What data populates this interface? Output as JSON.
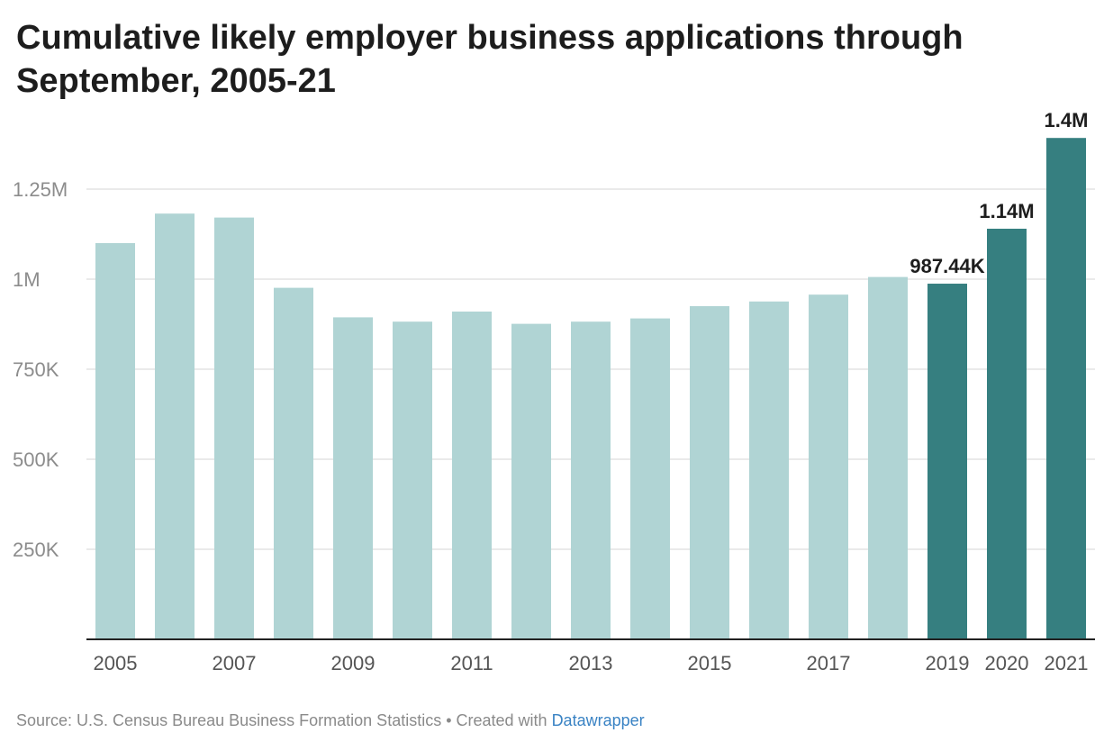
{
  "chart_data": {
    "type": "bar",
    "title": "Cumulative likely employer business applications through September, 2005-21",
    "categories": [
      "2005",
      "2006",
      "2007",
      "2008",
      "2009",
      "2010",
      "2011",
      "2012",
      "2013",
      "2014",
      "2015",
      "2016",
      "2017",
      "2018",
      "2019",
      "2020",
      "2021"
    ],
    "x_tick_labels": [
      "2005",
      "",
      "2007",
      "",
      "2009",
      "",
      "2011",
      "",
      "2013",
      "",
      "2015",
      "",
      "2017",
      "",
      "2019",
      "2020",
      "2021"
    ],
    "values": [
      1100000,
      1182000,
      1171000,
      976000,
      894000,
      882000,
      910000,
      876000,
      882000,
      891000,
      925000,
      938000,
      957000,
      1006000,
      987440,
      1140000,
      1392000
    ],
    "data_labels": [
      "",
      "",
      "",
      "",
      "",
      "",
      "",
      "",
      "",
      "",
      "",
      "",
      "",
      "",
      "987.44K",
      "1.14M",
      "1.4M"
    ],
    "highlighted": [
      false,
      false,
      false,
      false,
      false,
      false,
      false,
      false,
      false,
      false,
      false,
      false,
      false,
      false,
      true,
      true,
      true
    ],
    "colors": {
      "base": "#b0d4d4",
      "highlight": "#367f80"
    },
    "y_ticks": [
      250000,
      500000,
      750000,
      1000000,
      1250000
    ],
    "y_tick_labels": [
      "250K",
      "500K",
      "750K",
      "1M",
      "1.25M"
    ],
    "ylim": [
      0,
      1400000
    ],
    "xlabel": "",
    "ylabel": "",
    "grid": true
  },
  "footer": {
    "source_text": "Source: U.S. Census Bureau Business Formation Statistics • Created with ",
    "link_text": "Datawrapper"
  }
}
